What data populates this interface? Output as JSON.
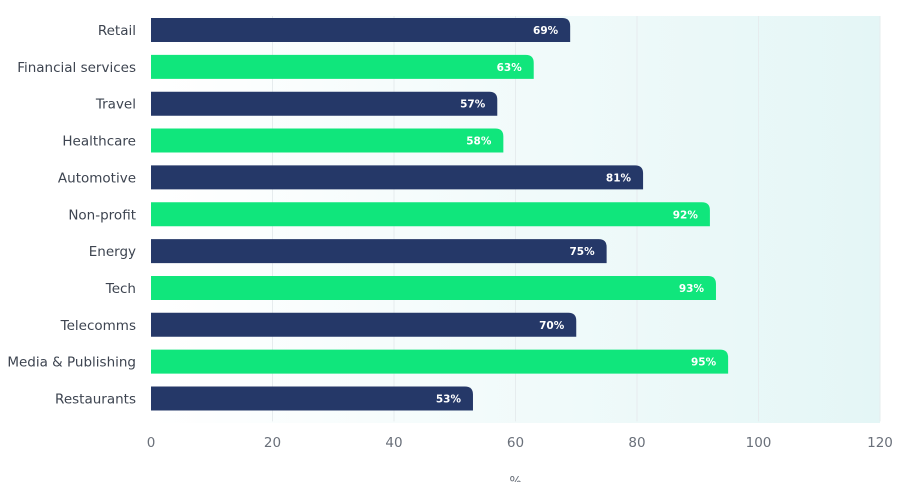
{
  "chart_data": {
    "type": "bar",
    "orientation": "horizontal",
    "categories": [
      "Retail",
      "Financial services",
      "Travel",
      "Healthcare",
      "Automotive",
      "Non-profit",
      "Energy",
      "Tech",
      "Telecomms",
      "Media & Publishing",
      "Restaurants"
    ],
    "values": [
      69,
      63,
      57,
      58,
      81,
      92,
      75,
      93,
      70,
      95,
      53
    ],
    "value_labels": [
      "69%",
      "63%",
      "57%",
      "58%",
      "81%",
      "92%",
      "75%",
      "93%",
      "70%",
      "95%",
      "53%"
    ],
    "xlabel": "%",
    "ylabel": "",
    "xlim": [
      0,
      120
    ],
    "x_ticks": [
      "0",
      "20",
      "40",
      "60",
      "80",
      "100",
      "120"
    ],
    "bar_colors": [
      "#253868",
      "#10e67c"
    ],
    "background_gradient": [
      "#ffffff",
      "#e4f6f6"
    ],
    "grid": true
  }
}
